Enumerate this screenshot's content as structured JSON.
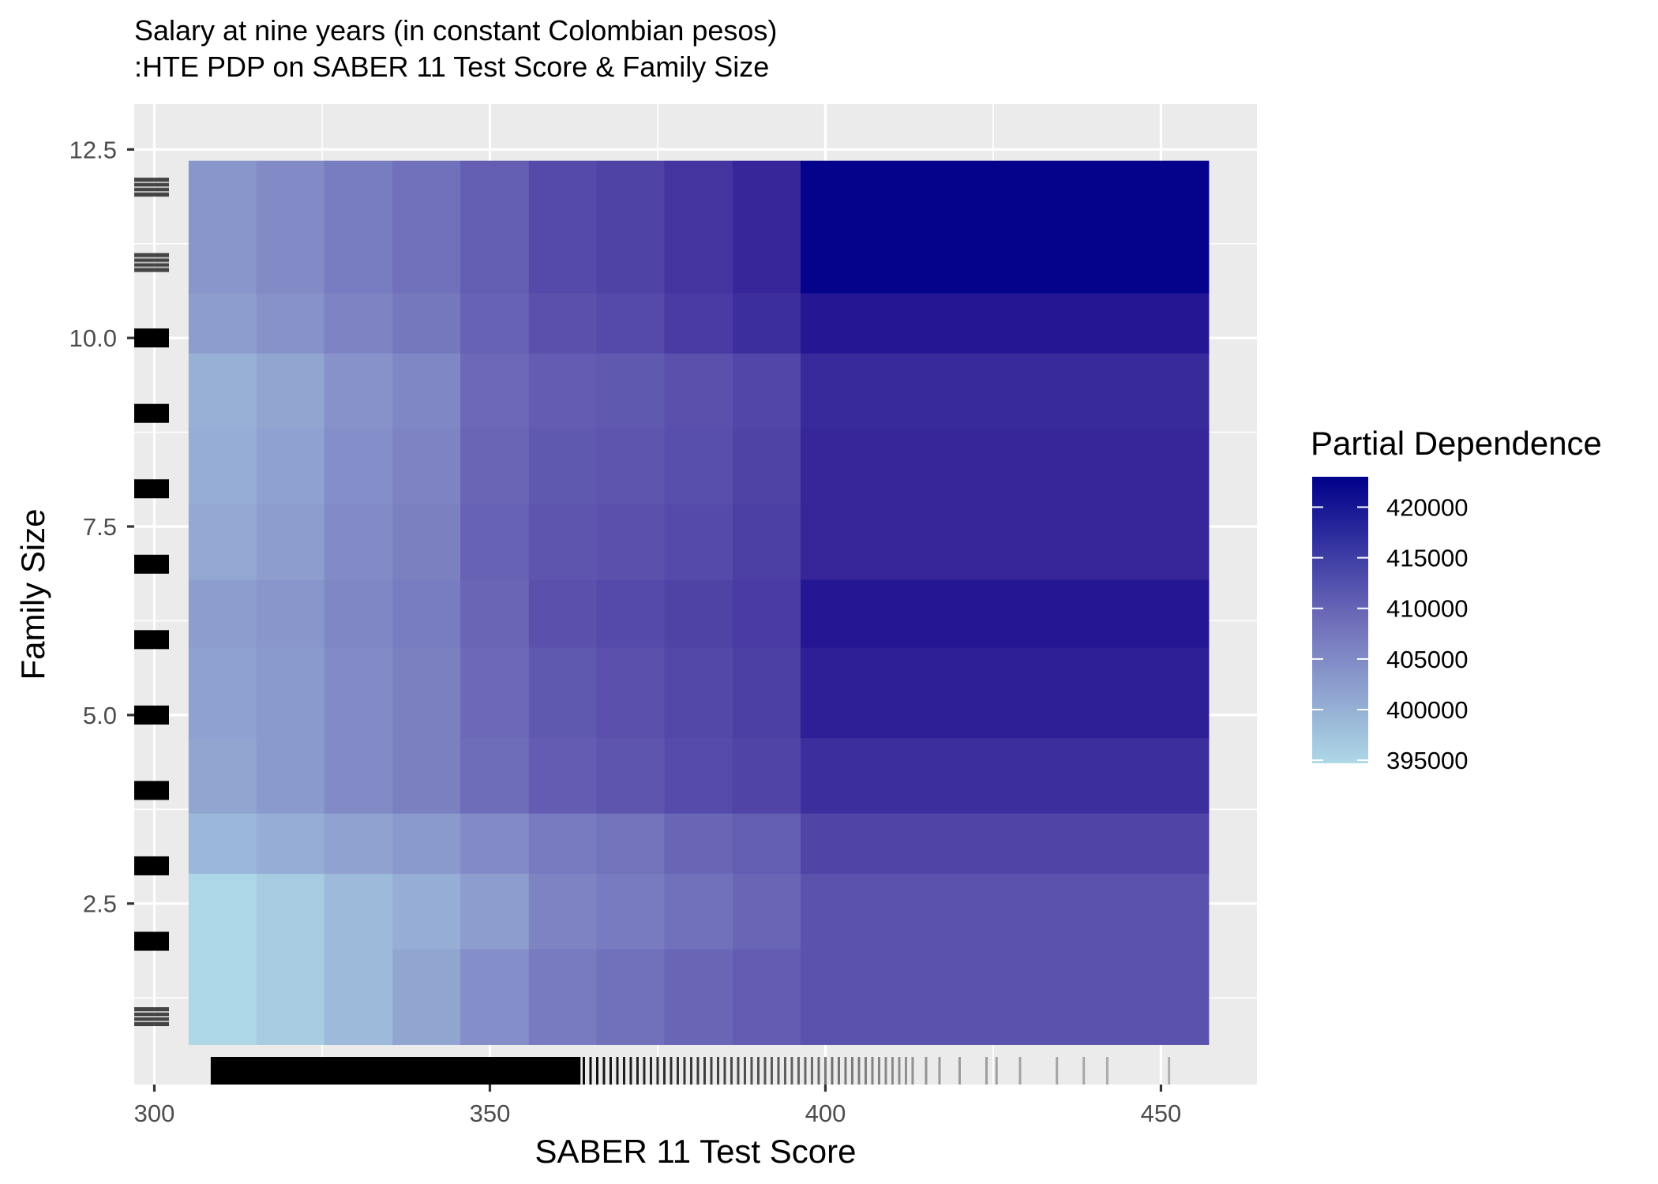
{
  "chart_data": {
    "type": "heatmap",
    "title": "Salary at nine years (in constant Colombian pesos)",
    "subtitle": ":HTE PDP on SABER 11 Test Score & Family Size",
    "xlabel": "SABER 11 Test Score",
    "ylabel": "Family Size",
    "xlim": [
      297,
      464.3
    ],
    "ylim": [
      0.1,
      13.1
    ],
    "x_ticks": [
      300,
      350,
      400,
      450
    ],
    "x_tick_labels": [
      "300",
      "350",
      "400",
      "450"
    ],
    "y_ticks": [
      2.5,
      5.0,
      7.5,
      10.0,
      12.5
    ],
    "y_tick_labels": [
      "2.5",
      "5.0",
      "7.5",
      "10.0",
      "12.5"
    ],
    "grid": true,
    "legend": {
      "title": "Partial Dependence",
      "position": "right",
      "ticks": [
        420000,
        415000,
        410000,
        405000,
        400000,
        395000
      ],
      "tick_labels": [
        "420000",
        "415000",
        "410000",
        "405000",
        "400000",
        "395000"
      ],
      "range": [
        394700,
        423000
      ],
      "low_color": "#add8e6",
      "high_color": "#00008b"
    },
    "x_bins": [
      305.1,
      315.2,
      325.3,
      335.5,
      345.6,
      355.8,
      365.9,
      376.0,
      386.2,
      396.3,
      457.1
    ],
    "y_bins": [
      0.63,
      1.9,
      2.9,
      3.7,
      4.7,
      5.9,
      6.8,
      7.8,
      8.8,
      9.8,
      10.6,
      12.35
    ],
    "values": [
      [
        394800,
        396200,
        398500,
        401300,
        404300,
        406900,
        408400,
        409900,
        411200,
        412600
      ],
      [
        394800,
        396200,
        398500,
        400300,
        402300,
        405900,
        406900,
        408400,
        409900,
        412600
      ],
      [
        399000,
        400200,
        401600,
        402800,
        404800,
        406900,
        407900,
        409900,
        411000,
        414600
      ],
      [
        401300,
        402800,
        404800,
        406300,
        408900,
        411200,
        412200,
        413600,
        414600,
        417700
      ],
      [
        401800,
        402800,
        404800,
        406300,
        409400,
        411700,
        412700,
        414100,
        415300,
        419700
      ],
      [
        402300,
        403300,
        405300,
        406800,
        409900,
        412700,
        413700,
        414700,
        415800,
        420700
      ],
      [
        400800,
        402300,
        404800,
        406300,
        410400,
        412200,
        412700,
        413700,
        415300,
        418700
      ],
      [
        400300,
        401800,
        404300,
        405800,
        409900,
        411700,
        412200,
        413200,
        414800,
        418700
      ],
      [
        399800,
        401300,
        403800,
        405300,
        409400,
        411200,
        411700,
        412700,
        414300,
        418200
      ],
      [
        402300,
        403800,
        405800,
        407300,
        410400,
        412700,
        413700,
        415800,
        417700,
        420700
      ],
      [
        403300,
        404800,
        406800,
        408400,
        410900,
        413700,
        414700,
        416800,
        418700,
        422800
      ]
    ],
    "rug_y": [
      1,
      2,
      3,
      4,
      5,
      6,
      7,
      8,
      9,
      10,
      11,
      12
    ],
    "rug_y_faded": [
      1,
      11,
      12
    ],
    "rug_x_solid_range": [
      308.4,
      363.5
    ],
    "rug_x_sparse": [
      364,
      365,
      366,
      367,
      368,
      369,
      370,
      371,
      372,
      373,
      374,
      375,
      376,
      377,
      378,
      379,
      380,
      381,
      382,
      383,
      384,
      385,
      386,
      387,
      388,
      389,
      390,
      391,
      392,
      393,
      394,
      395,
      396,
      397,
      398,
      399,
      400,
      401,
      402,
      403,
      404,
      405,
      406,
      407,
      408,
      409,
      410,
      411,
      412,
      413,
      415,
      417,
      420,
      424,
      425.5,
      429,
      434.5,
      438.5,
      442,
      451.2
    ]
  }
}
